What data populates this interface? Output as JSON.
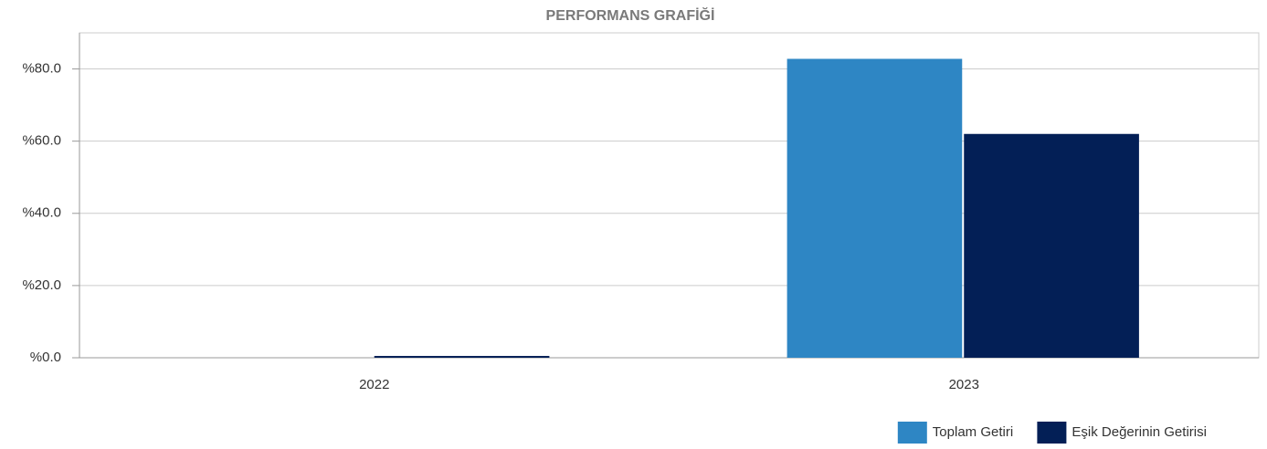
{
  "chart_data": {
    "type": "bar",
    "title": "PERFORMANS GRAFİĞİ",
    "categories": [
      "2022",
      "2023"
    ],
    "series": [
      {
        "name": "Toplam Getiri",
        "color": "#2e86c4",
        "values": [
          0,
          82.8
        ]
      },
      {
        "name": "Eşik Değerinin Getirisi",
        "color": "#031f56",
        "values": [
          0.5,
          62
        ]
      }
    ],
    "ylim": [
      0,
      90
    ],
    "yticks": [
      {
        "value": 0,
        "label": "%0.0"
      },
      {
        "value": 20,
        "label": "%20.0"
      },
      {
        "value": 40,
        "label": "%40.0"
      },
      {
        "value": 60,
        "label": "%60.0"
      },
      {
        "value": 80,
        "label": "%80.0"
      }
    ],
    "grid": true,
    "legend": "bottom-right"
  }
}
